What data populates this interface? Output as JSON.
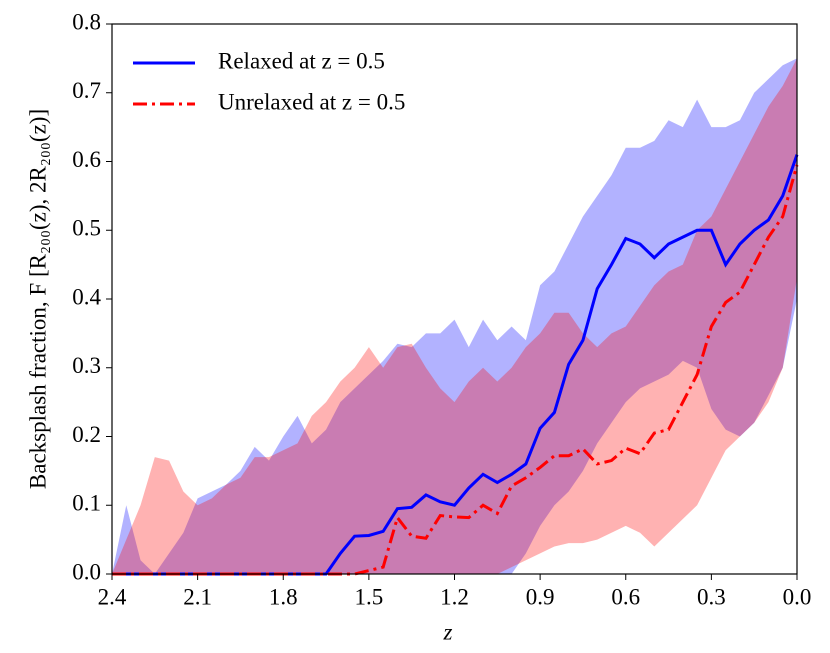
{
  "chart_data": {
    "type": "line",
    "xlabel": "z",
    "ylabel": "Backsplash fraction, F  [R₂₀₀(z), 2R₂₀₀(z)]",
    "x": [
      2.4,
      2.35,
      2.3,
      2.25,
      2.2,
      2.15,
      2.1,
      2.05,
      2.0,
      1.95,
      1.9,
      1.85,
      1.8,
      1.75,
      1.7,
      1.65,
      1.6,
      1.55,
      1.5,
      1.45,
      1.4,
      1.35,
      1.3,
      1.25,
      1.2,
      1.15,
      1.1,
      1.05,
      1.0,
      0.95,
      0.9,
      0.85,
      0.8,
      0.75,
      0.7,
      0.65,
      0.6,
      0.55,
      0.5,
      0.45,
      0.4,
      0.35,
      0.3,
      0.25,
      0.2,
      0.15,
      0.1,
      0.05,
      0
    ],
    "series": [
      {
        "name": "Relaxed at z = 0.5",
        "color": "#0000ff",
        "dash": "solid",
        "values": [
          0,
          0,
          0,
          0,
          0,
          0,
          0,
          0,
          0,
          0,
          0,
          0,
          0,
          0,
          0,
          0,
          0.03,
          0.055,
          0.056,
          0.062,
          0.095,
          0.097,
          0.115,
          0.105,
          0.1,
          0.125,
          0.145,
          0.133,
          0.145,
          0.16,
          0.212,
          0.235,
          0.305,
          0.34,
          0.415,
          0.45,
          0.488,
          0.48,
          0.46,
          0.48,
          0.49,
          0.5,
          0.5,
          0.45,
          0.48,
          0.5,
          0.515,
          0.55,
          0.61
        ],
        "upper": [
          0,
          0.1,
          0.02,
          0,
          0.03,
          0.06,
          0.11,
          0.12,
          0.13,
          0.15,
          0.185,
          0.165,
          0.2,
          0.23,
          0.19,
          0.21,
          0.25,
          0.27,
          0.29,
          0.31,
          0.335,
          0.33,
          0.35,
          0.35,
          0.37,
          0.33,
          0.37,
          0.34,
          0.36,
          0.34,
          0.42,
          0.44,
          0.48,
          0.52,
          0.55,
          0.58,
          0.62,
          0.62,
          0.63,
          0.66,
          0.65,
          0.69,
          0.65,
          0.65,
          0.66,
          0.7,
          0.72,
          0.74,
          0.75
        ],
        "lower": [
          0,
          0,
          0,
          0,
          0,
          0,
          0,
          0,
          0,
          0,
          0,
          0,
          0,
          0,
          0,
          0,
          0,
          0,
          0,
          0,
          0,
          0,
          0,
          0,
          0,
          0,
          0,
          0,
          0,
          0.03,
          0.07,
          0.1,
          0.12,
          0.15,
          0.19,
          0.22,
          0.25,
          0.27,
          0.28,
          0.29,
          0.31,
          0.3,
          0.24,
          0.21,
          0.2,
          0.22,
          0.26,
          0.3,
          0.4
        ]
      },
      {
        "name": "Unrelaxed at z = 0.5",
        "color": "#ff0000",
        "dash": "dashdot",
        "values": [
          0,
          0,
          0,
          0,
          0,
          0,
          0,
          0,
          0,
          0,
          0,
          0,
          0,
          0,
          0,
          0,
          0,
          0,
          0.005,
          0.01,
          0.082,
          0.055,
          0.052,
          0.085,
          0.083,
          0.082,
          0.1,
          0.088,
          0.128,
          0.14,
          0.155,
          0.172,
          0.172,
          0.182,
          0.16,
          0.165,
          0.183,
          0.175,
          0.205,
          0.21,
          0.25,
          0.29,
          0.36,
          0.395,
          0.41,
          0.45,
          0.49,
          0.52,
          0.595
        ],
        "upper": [
          0,
          0.05,
          0.1,
          0.17,
          0.165,
          0.12,
          0.1,
          0.11,
          0.13,
          0.14,
          0.17,
          0.17,
          0.18,
          0.19,
          0.23,
          0.25,
          0.28,
          0.3,
          0.33,
          0.3,
          0.33,
          0.335,
          0.3,
          0.27,
          0.25,
          0.28,
          0.3,
          0.28,
          0.3,
          0.33,
          0.35,
          0.38,
          0.38,
          0.35,
          0.33,
          0.35,
          0.36,
          0.39,
          0.42,
          0.44,
          0.45,
          0.5,
          0.52,
          0.56,
          0.6,
          0.64,
          0.68,
          0.71,
          0.75
        ],
        "lower": [
          0,
          0,
          0,
          0,
          0,
          0,
          0,
          0,
          0,
          0,
          0,
          0,
          0,
          0,
          0,
          0,
          0,
          0,
          0,
          0,
          0,
          0,
          0,
          0,
          0,
          0,
          0,
          0,
          0.01,
          0.02,
          0.03,
          0.04,
          0.045,
          0.045,
          0.05,
          0.06,
          0.07,
          0.06,
          0.04,
          0.06,
          0.08,
          0.1,
          0.14,
          0.18,
          0.2,
          0.22,
          0.25,
          0.3,
          0.43
        ]
      }
    ],
    "xlim": [
      2.4,
      0
    ],
    "xticks": [
      2.4,
      2.1,
      1.8,
      1.5,
      1.2,
      0.9,
      0.6,
      0.3,
      {
        "value": 0,
        "label": "0.0"
      }
    ],
    "ylim": [
      0,
      0.8
    ],
    "yticks": [
      {
        "value": 0,
        "label": "0.0"
      },
      0.1,
      0.2,
      0.3,
      0.4,
      0.5,
      0.6,
      0.7,
      0.8
    ],
    "legend": "upper left"
  }
}
